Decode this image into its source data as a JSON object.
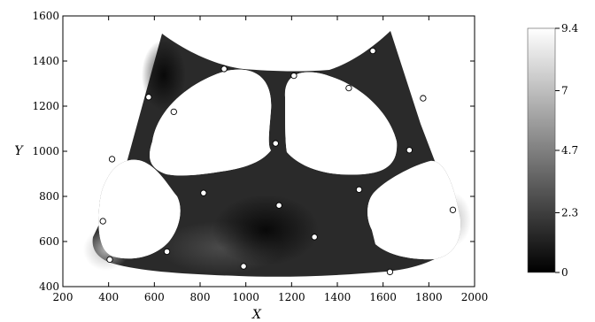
{
  "chart_data": {
    "type": "heatmap",
    "xlabel": "X",
    "ylabel": "Y",
    "xlim": [
      200,
      2000
    ],
    "ylim": [
      400,
      1600
    ],
    "xticks": [
      200,
      400,
      600,
      800,
      1000,
      1200,
      1400,
      1600,
      1800,
      2000
    ],
    "yticks": [
      400,
      600,
      800,
      1000,
      1200,
      1400,
      1600
    ],
    "colorbar": {
      "min": 0,
      "max": 9.4,
      "ticks": [
        0,
        2.3,
        4.7,
        7,
        9.4
      ],
      "tick_labels": [
        "0",
        "2.3",
        "4.7",
        "7",
        "9.4"
      ],
      "colormap": "grayscale"
    },
    "grid": false,
    "points": [
      {
        "x": 375,
        "y": 690
      },
      {
        "x": 405,
        "y": 520
      },
      {
        "x": 415,
        "y": 965
      },
      {
        "x": 575,
        "y": 1240
      },
      {
        "x": 655,
        "y": 555
      },
      {
        "x": 685,
        "y": 1175
      },
      {
        "x": 815,
        "y": 815
      },
      {
        "x": 905,
        "y": 1365
      },
      {
        "x": 990,
        "y": 490
      },
      {
        "x": 1130,
        "y": 1035
      },
      {
        "x": 1145,
        "y": 760
      },
      {
        "x": 1210,
        "y": 1335
      },
      {
        "x": 1300,
        "y": 620
      },
      {
        "x": 1450,
        "y": 1280
      },
      {
        "x": 1495,
        "y": 830
      },
      {
        "x": 1555,
        "y": 1445
      },
      {
        "x": 1630,
        "y": 465
      },
      {
        "x": 1715,
        "y": 1005
      },
      {
        "x": 1775,
        "y": 1235
      },
      {
        "x": 1905,
        "y": 740
      }
    ]
  }
}
